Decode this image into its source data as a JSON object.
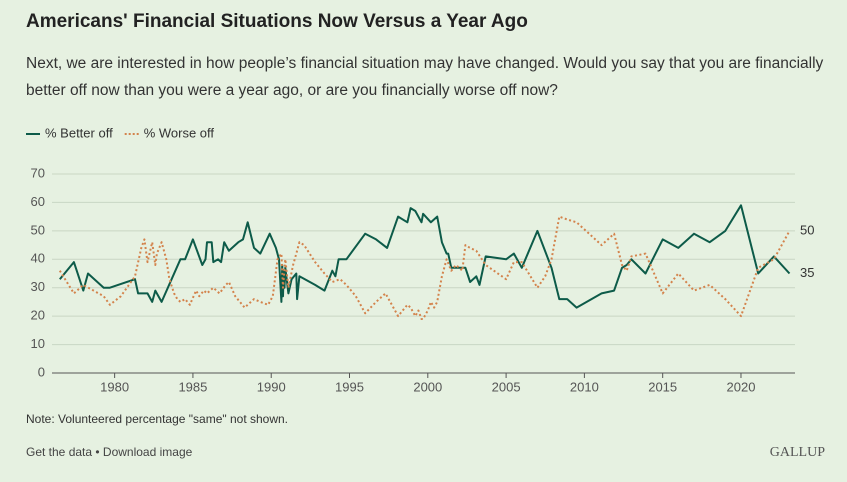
{
  "chart_data": {
    "type": "line",
    "title": "Americans' Financial Situations Now Versus a Year Ago",
    "subtitle": "Next, we are interested in how people’s financial situation may have changed. Would you say that you are financially better off now than you were a year ago, or are you financially worse off now?",
    "note": "Note: Volunteered percentage \"same\" not shown.",
    "footer_links": "Get the data • Download image",
    "brand": "GALLUP",
    "xlim": [
      1976,
      2023.45
    ],
    "xticks": [
      1980,
      1985,
      1990,
      1995,
      2000,
      2005,
      2010,
      2015,
      2020
    ],
    "ylim": [
      0,
      70
    ],
    "yticks": [
      0,
      10,
      20,
      30,
      40,
      50,
      60,
      70
    ],
    "grid": true,
    "series": [
      {
        "name": "% Better off",
        "color": "#0d5b49",
        "dash": "solid",
        "x": [
          1976.5,
          1977.4,
          1978.0,
          1978.3,
          1979.3,
          1979.7,
          1981.3,
          1981.5,
          1982.1,
          1982.4,
          1982.6,
          1983.0,
          1984.2,
          1984.5,
          1985.0,
          1985.6,
          1985.8,
          1985.9,
          1986.2,
          1986.3,
          1986.6,
          1986.8,
          1987.0,
          1987.3,
          1987.9,
          1988.2,
          1988.5,
          1988.9,
          1989.3,
          1989.9,
          1990.3,
          1990.5,
          1990.65,
          1990.7,
          1990.75,
          1990.8,
          1990.85,
          1990.9,
          1991.1,
          1991.3,
          1991.6,
          1991.65,
          1991.8,
          1992.8,
          1993.4,
          1993.9,
          1994.1,
          1994.3,
          1994.8,
          1996.0,
          1996.7,
          1997.4,
          1998.1,
          1998.7,
          1998.9,
          1999.2,
          1999.6,
          1999.7,
          2000.2,
          2000.6,
          2000.9,
          2001.2,
          2001.3,
          2001.5,
          2001.8,
          2002.4,
          2002.7,
          2003.1,
          2003.3,
          2003.7,
          2005.0,
          2005.5,
          2006.0,
          2007.0,
          2007.9,
          2008.4,
          2008.9,
          2009.5,
          2011.1,
          2011.9,
          2012.4,
          2012.7,
          2013.0,
          2013.9,
          2015.0,
          2016.0,
          2017.0,
          2018.0,
          2019.0,
          2020.0,
          2021.1,
          2022.1,
          2023.1
        ],
        "values": [
          33,
          39,
          29,
          35,
          30,
          30,
          33,
          28,
          28,
          25,
          29,
          25,
          40,
          40,
          47,
          38,
          40,
          46,
          46,
          39,
          40,
          39,
          46,
          43,
          46,
          47,
          53,
          44,
          42,
          49,
          44,
          40,
          25,
          38,
          27,
          36,
          30,
          37,
          28,
          33,
          35,
          26,
          34,
          31,
          29,
          36,
          34,
          40,
          40,
          49,
          47,
          44,
          55,
          53,
          58,
          57,
          53,
          56,
          53,
          55,
          46,
          42,
          42,
          37,
          37,
          37,
          32,
          34,
          31,
          41,
          40,
          42,
          37,
          50,
          37,
          26,
          26,
          23,
          28,
          29,
          37,
          38,
          40,
          35,
          47,
          44,
          49,
          46,
          50,
          59,
          35,
          41,
          35
        ]
      },
      {
        "name": "% Worse off",
        "color": "#d3834c",
        "dash": "dotted",
        "x": [
          1976.5,
          1977.4,
          1978.0,
          1979.3,
          1979.7,
          1980.4,
          1981.3,
          1981.7,
          1981.9,
          1982.1,
          1982.4,
          1982.6,
          1982.7,
          1983.0,
          1983.3,
          1983.5,
          1983.8,
          1984.0,
          1984.2,
          1984.5,
          1984.8,
          1985.2,
          1985.4,
          1985.7,
          1985.9,
          1986.3,
          1986.7,
          1987.1,
          1987.3,
          1987.7,
          1988.3,
          1988.9,
          1989.3,
          1989.8,
          1990.1,
          1990.4,
          1990.65,
          1990.75,
          1990.9,
          1991.1,
          1991.4,
          1991.6,
          1991.8,
          1992.1,
          1992.8,
          1993.4,
          1993.9,
          1994.4,
          1994.8,
          1995.4,
          1996.0,
          1996.7,
          1997.3,
          1997.8,
          1998.1,
          1998.7,
          1998.9,
          1999.2,
          1999.4,
          1999.6,
          1999.7,
          2000.0,
          2000.2,
          2000.4,
          2000.6,
          2000.9,
          2001.2,
          2001.5,
          2001.8,
          2002.2,
          2002.4,
          2002.7,
          2003.1,
          2003.7,
          2005.0,
          2005.5,
          2006.0,
          2007.0,
          2007.5,
          2007.9,
          2008.4,
          2008.9,
          2009.5,
          2011.1,
          2011.9,
          2012.4,
          2012.7,
          2013.0,
          2013.9,
          2015.0,
          2016.0,
          2017.0,
          2018.0,
          2019.0,
          2020.0,
          2021.1,
          2022.1,
          2023.1
        ],
        "values": [
          36,
          28,
          31,
          27,
          24,
          27,
          34,
          44,
          47,
          39,
          46,
          38,
          42,
          46,
          40,
          33,
          28,
          26,
          25,
          26,
          24,
          29,
          27,
          29,
          28,
          30,
          28,
          31,
          32,
          27,
          23,
          26,
          25,
          24,
          27,
          40,
          42,
          30,
          40,
          30,
          38,
          42,
          46,
          45,
          39,
          35,
          32,
          33,
          31,
          27,
          21,
          25,
          28,
          23,
          20,
          24,
          23,
          20,
          22,
          19,
          19,
          22,
          25,
          23,
          25,
          34,
          40,
          36,
          38,
          36,
          45,
          44,
          43,
          38,
          33,
          39,
          39,
          30,
          34,
          40,
          55,
          54,
          53,
          45,
          49,
          38,
          36,
          41,
          42,
          28,
          35,
          29,
          31,
          26,
          20,
          37,
          40,
          50
        ]
      }
    ]
  }
}
